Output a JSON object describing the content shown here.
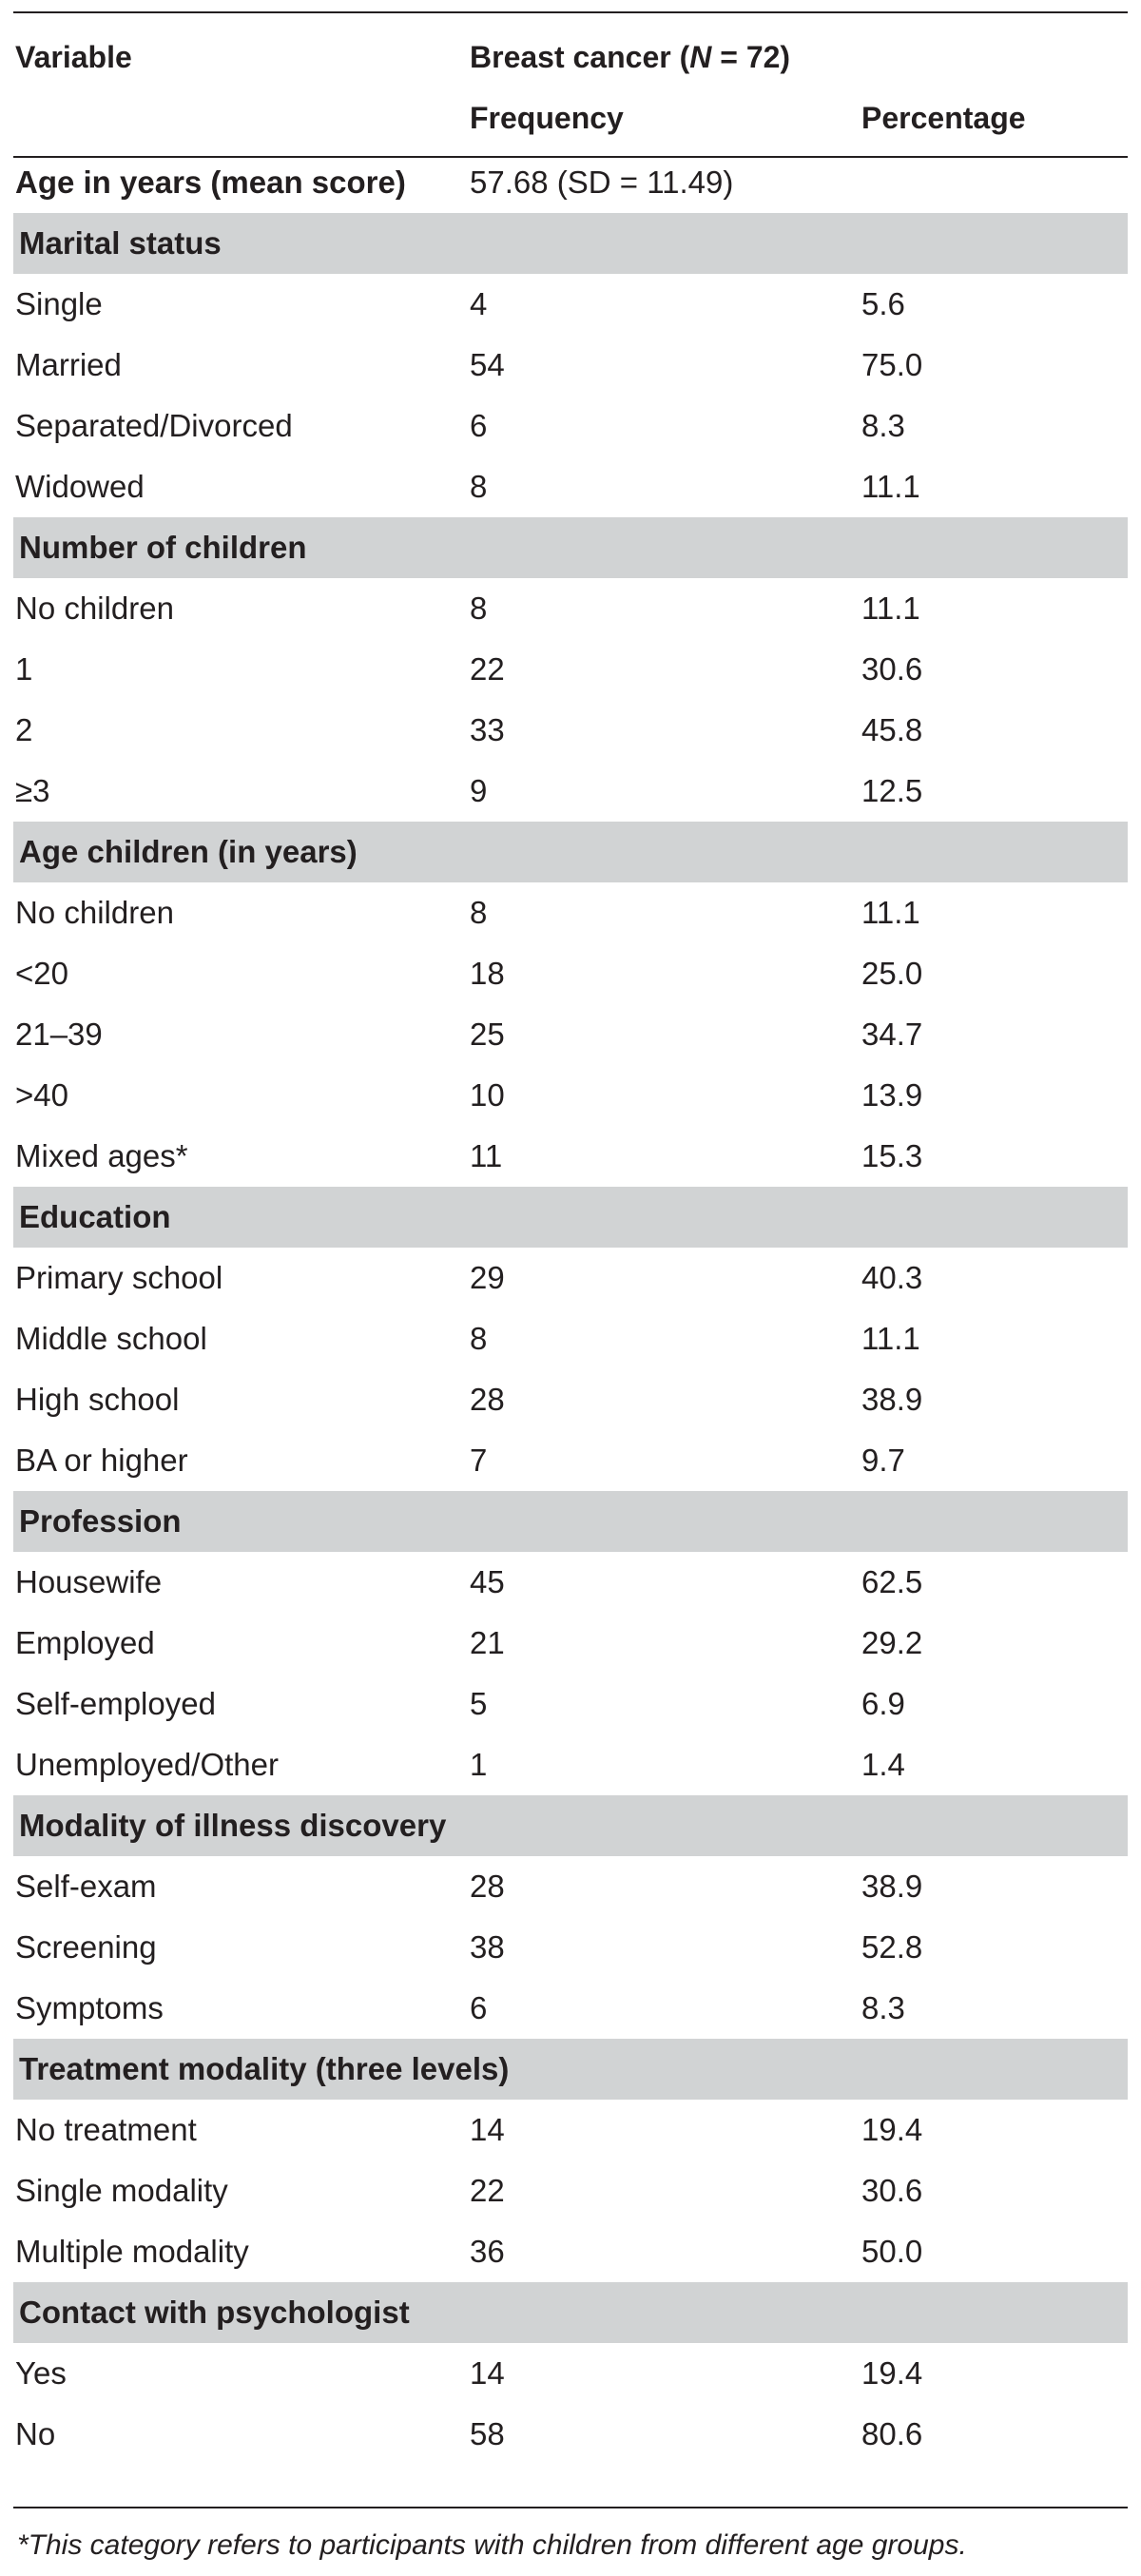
{
  "header": {
    "variable": "Variable",
    "group_prefix": "Breast cancer (",
    "group_n": "N",
    "group_suffix": " = 72)",
    "frequency": "Frequency",
    "percentage": "Percentage"
  },
  "age": {
    "label": "Age in years (mean score)",
    "value": "57.68 (SD = 11.49)"
  },
  "sections": [
    {
      "title": "Marital status",
      "rows": [
        {
          "label": "Single",
          "freq": "4",
          "pct": "5.6"
        },
        {
          "label": "Married",
          "freq": "54",
          "pct": "75.0"
        },
        {
          "label": "Separated/Divorced",
          "freq": "6",
          "pct": "8.3"
        },
        {
          "label": "Widowed",
          "freq": "8",
          "pct": "11.1"
        }
      ]
    },
    {
      "title": "Number of children",
      "rows": [
        {
          "label": "No children",
          "freq": "8",
          "pct": "11.1"
        },
        {
          "label": "1",
          "freq": "22",
          "pct": "30.6"
        },
        {
          "label": "2",
          "freq": "33",
          "pct": "45.8"
        },
        {
          "label": "≥3",
          "freq": "9",
          "pct": "12.5"
        }
      ]
    },
    {
      "title": "Age children (in years)",
      "rows": [
        {
          "label": "No children",
          "freq": "8",
          "pct": "11.1"
        },
        {
          "label": "<20",
          "freq": "18",
          "pct": "25.0"
        },
        {
          "label": "21–39",
          "freq": "25",
          "pct": "34.7"
        },
        {
          "label": ">40",
          "freq": "10",
          "pct": "13.9"
        },
        {
          "label": "Mixed ages*",
          "freq": "11",
          "pct": "15.3"
        }
      ]
    },
    {
      "title": "Education",
      "rows": [
        {
          "label": "Primary school",
          "freq": "29",
          "pct": "40.3"
        },
        {
          "label": "Middle school",
          "freq": "8",
          "pct": "11.1"
        },
        {
          "label": "High school",
          "freq": "28",
          "pct": "38.9"
        },
        {
          "label": "BA or higher",
          "freq": "7",
          "pct": "9.7"
        }
      ]
    },
    {
      "title": "Profession",
      "rows": [
        {
          "label": "Housewife",
          "freq": "45",
          "pct": "62.5"
        },
        {
          "label": "Employed",
          "freq": "21",
          "pct": "29.2"
        },
        {
          "label": "Self-employed",
          "freq": "5",
          "pct": "6.9"
        },
        {
          "label": "Unemployed/Other",
          "freq": "1",
          "pct": "1.4"
        }
      ]
    },
    {
      "title": "Modality of illness discovery",
      "rows": [
        {
          "label": "Self-exam",
          "freq": "28",
          "pct": "38.9"
        },
        {
          "label": "Screening",
          "freq": "38",
          "pct": "52.8"
        },
        {
          "label": "Symptoms",
          "freq": "6",
          "pct": "8.3"
        }
      ]
    },
    {
      "title": "Treatment modality (three levels)",
      "rows": [
        {
          "label": "No treatment",
          "freq": "14",
          "pct": "19.4"
        },
        {
          "label": "Single modality",
          "freq": "22",
          "pct": "30.6"
        },
        {
          "label": "Multiple modality",
          "freq": "36",
          "pct": "50.0"
        }
      ]
    },
    {
      "title": "Contact with psychologist",
      "rows": [
        {
          "label": "Yes",
          "freq": "14",
          "pct": "19.4"
        },
        {
          "label": "No",
          "freq": "58",
          "pct": "80.6"
        }
      ]
    }
  ],
  "footnote": "*This category refers to participants with children from different age groups."
}
